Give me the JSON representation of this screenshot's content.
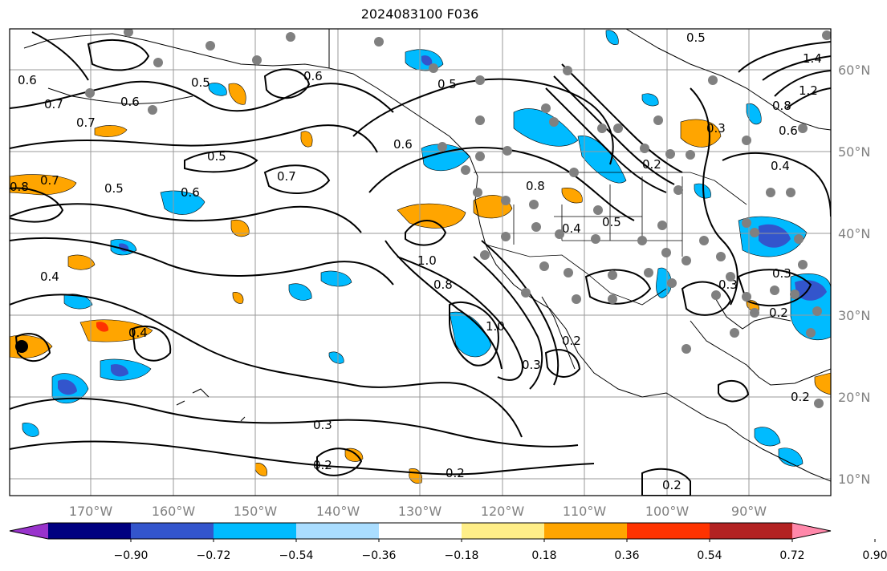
{
  "title": "2024083100 F036",
  "lon_labels": [
    "170°W",
    "160°W",
    "150°W",
    "140°W",
    "130°W",
    "120°W",
    "110°W",
    "100°W",
    "90°W"
  ],
  "lat_labels": [
    "60°N",
    "50°N",
    "40°N",
    "30°N",
    "20°N",
    "10°N"
  ],
  "colorbar": {
    "ticks": [
      "−0.90",
      "−0.72",
      "−0.54",
      "−0.36",
      "−0.18",
      "0.18",
      "0.36",
      "0.54",
      "0.72",
      "0.90"
    ],
    "colors": [
      "#9933cc",
      "#000080",
      "#3355cc",
      "#00bbff",
      "#aaddff",
      "#ffffff",
      "#ffee88",
      "#ffa500",
      "#ff3300",
      "#b22222",
      "#ff88aa"
    ]
  },
  "contour_labels": [
    "0.6",
    "0.7",
    "0.7",
    "0.6",
    "0.5",
    "0.5",
    "0.5",
    "0.6",
    "0.7",
    "0.6",
    "0.8",
    "0.7",
    "0.5",
    "0.4",
    "0.4",
    "0.3",
    "0.2",
    "0.2",
    "0.2",
    "0.3",
    "0.6",
    "1.0",
    "0.8",
    "1.0",
    "0.8",
    "0.5",
    "0.4",
    "0.5",
    "1.4",
    "1.2",
    "0.8",
    "0.6",
    "0.4",
    "0.3",
    "0.3",
    "0.2",
    "0.2",
    "0.2",
    "0.2",
    "0.3"
  ],
  "scalar_field_note_colors": {
    "positive": "#ffa500",
    "negative": "#00bbff",
    "strong_negative": "#3355cc",
    "strong_positive": "#ff3300",
    "marker": "#808080"
  }
}
